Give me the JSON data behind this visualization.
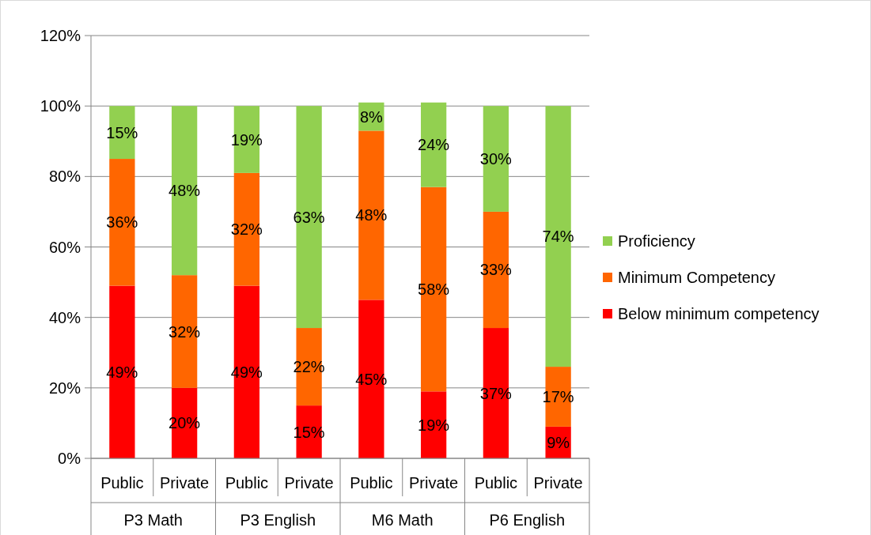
{
  "chart_data": {
    "type": "bar",
    "stacked": true,
    "grid": "y",
    "legend": "right",
    "categories": [
      "Public",
      "Private",
      "Public",
      "Private",
      "Public",
      "Private",
      "Public",
      "Private"
    ],
    "annotations": [
      "P3 Math",
      "P3 English",
      "M6 Math",
      "P6 English"
    ],
    "ylim": [
      0,
      120
    ],
    "yticks": [
      {
        "value": 0,
        "label": "0%"
      },
      {
        "value": 20,
        "label": "20%"
      },
      {
        "value": 40,
        "label": "40%"
      },
      {
        "value": 60,
        "label": "60%"
      },
      {
        "value": 80,
        "label": "80%"
      },
      {
        "value": 100,
        "label": "100%"
      },
      {
        "value": 120,
        "label": "120%"
      }
    ],
    "series": [
      {
        "name": "Below minimum competency",
        "color": "#ff0000",
        "values": [
          49,
          20,
          49,
          15,
          45,
          19,
          37,
          9
        ],
        "value_labels": [
          "49%",
          "20%",
          "49%",
          "15%",
          "45%",
          "19%",
          "37%",
          "9%"
        ]
      },
      {
        "name": "Minimum Competency",
        "color": "#ff6600",
        "values": [
          36,
          32,
          32,
          22,
          48,
          58,
          33,
          17
        ],
        "value_labels": [
          "36%",
          "32%",
          "32%",
          "22%",
          "48%",
          "58%",
          "33%",
          "17%"
        ]
      },
      {
        "name": "Proficiency",
        "color": "#92d050",
        "values": [
          15,
          48,
          19,
          63,
          8,
          24,
          30,
          74
        ],
        "value_labels": [
          "15%",
          "48%",
          "19%",
          "63%",
          "8%",
          "24%",
          "30%",
          "74%"
        ]
      }
    ]
  }
}
